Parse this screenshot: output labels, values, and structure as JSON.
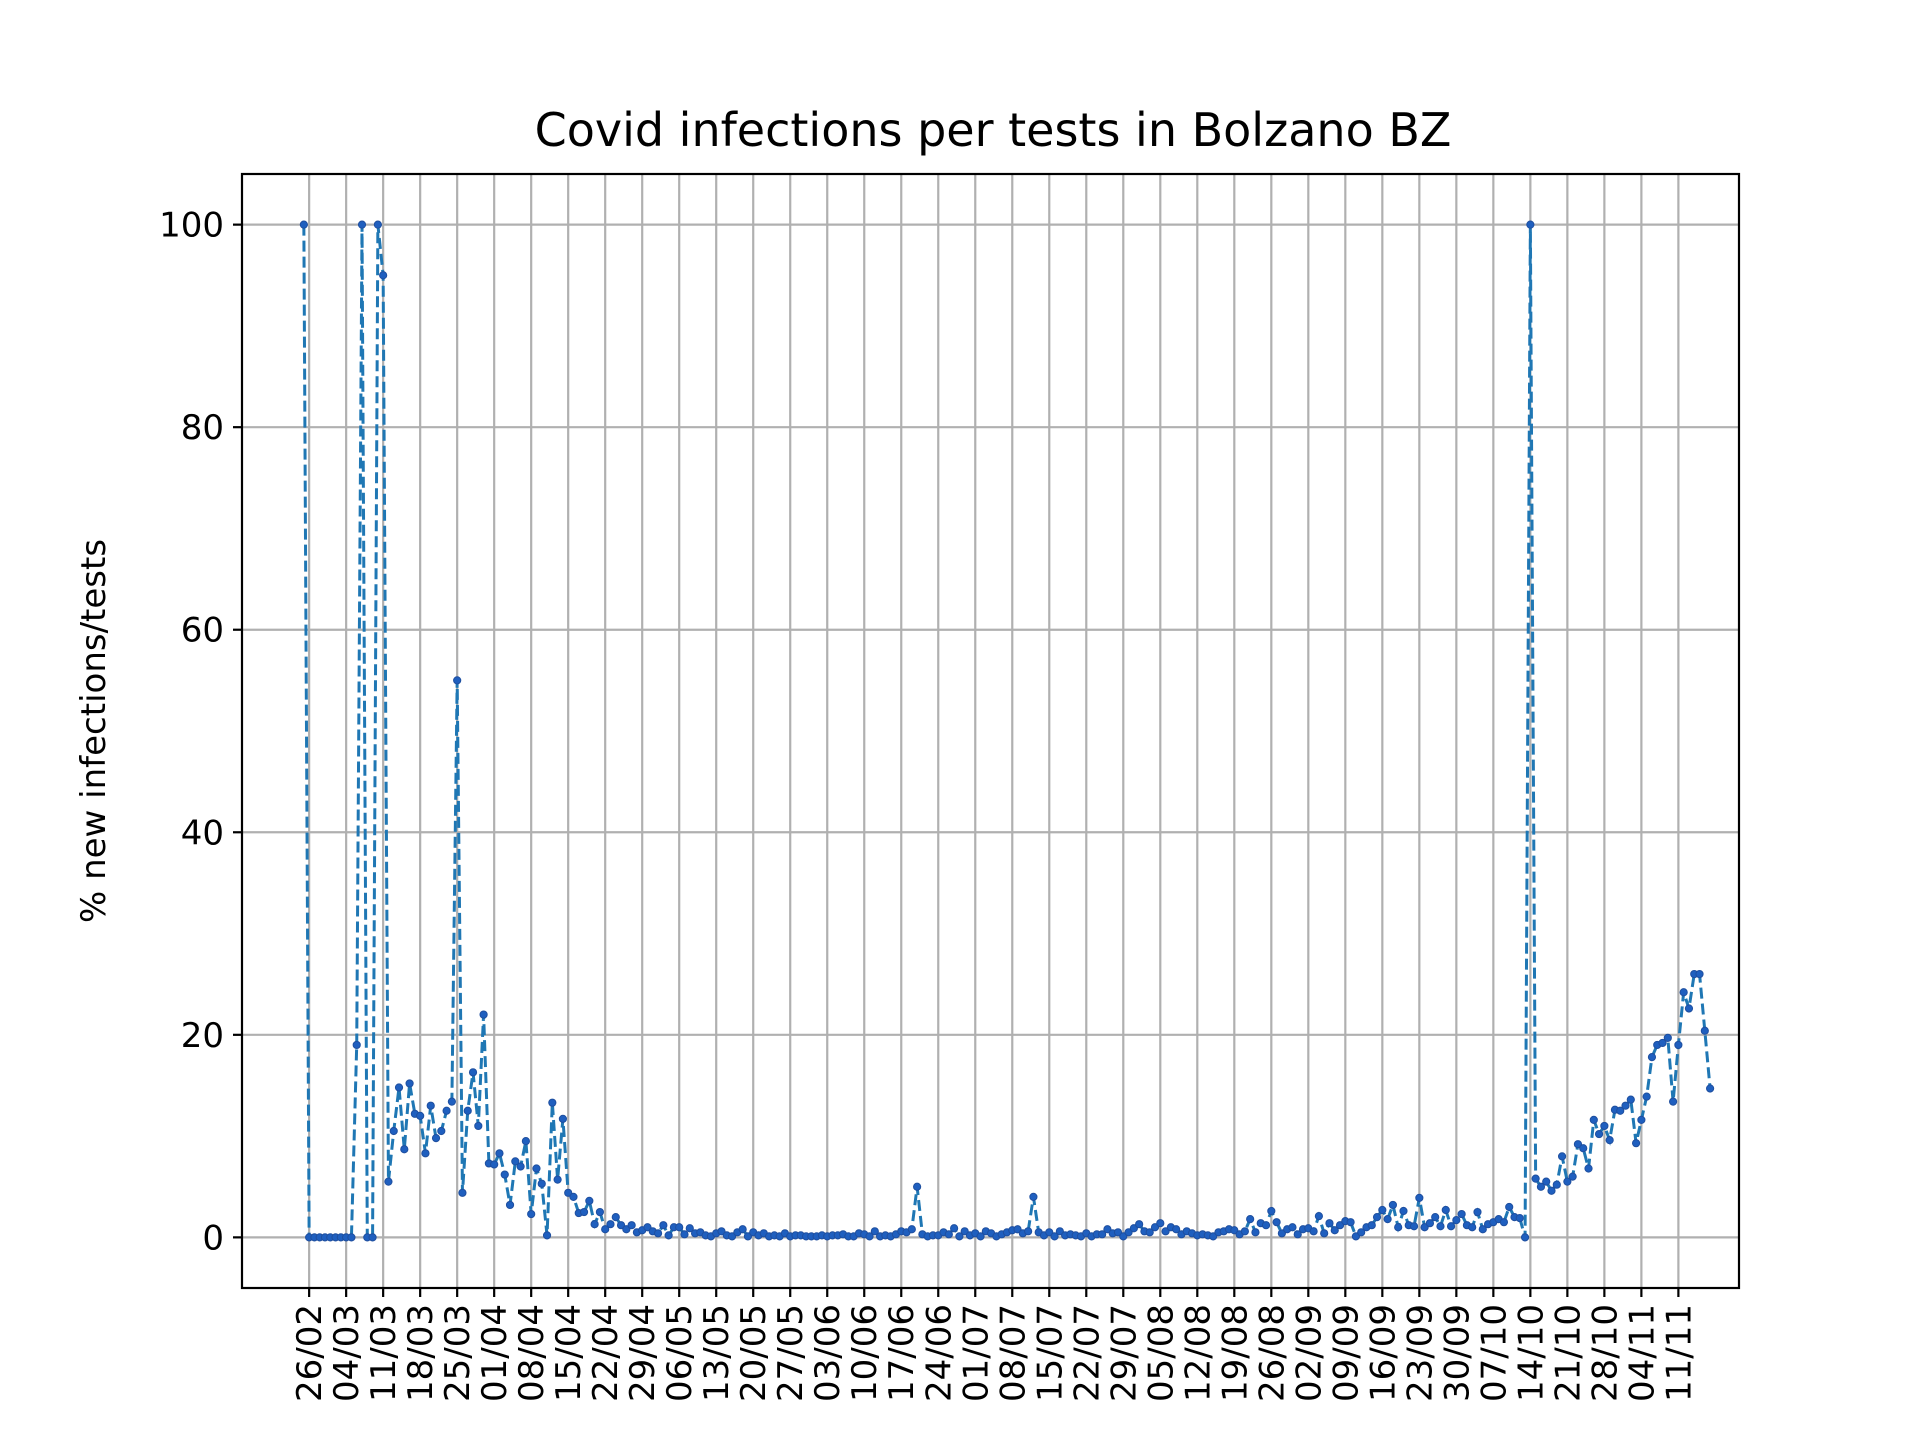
{
  "chart_data": {
    "type": "line",
    "title": "Covid infections per tests in Bolzano BZ",
    "xlabel": "",
    "ylabel": "% new infections/tests",
    "ylim": [
      -5,
      105
    ],
    "yticks": [
      0,
      20,
      40,
      60,
      80,
      100
    ],
    "grid": true,
    "legend": "none",
    "x_start": "2020-02-25",
    "x_end": "2020-11-11",
    "xticks": [
      {
        "date": "2020-02-26",
        "label": "26/02"
      },
      {
        "date": "2020-03-04",
        "label": "04/03"
      },
      {
        "date": "2020-03-11",
        "label": "11/03"
      },
      {
        "date": "2020-03-18",
        "label": "18/03"
      },
      {
        "date": "2020-03-25",
        "label": "25/03"
      },
      {
        "date": "2020-04-01",
        "label": "01/04"
      },
      {
        "date": "2020-04-08",
        "label": "08/04"
      },
      {
        "date": "2020-04-15",
        "label": "15/04"
      },
      {
        "date": "2020-04-22",
        "label": "22/04"
      },
      {
        "date": "2020-04-29",
        "label": "29/04"
      },
      {
        "date": "2020-05-06",
        "label": "06/05"
      },
      {
        "date": "2020-05-13",
        "label": "13/05"
      },
      {
        "date": "2020-05-20",
        "label": "20/05"
      },
      {
        "date": "2020-05-27",
        "label": "27/05"
      },
      {
        "date": "2020-06-03",
        "label": "03/06"
      },
      {
        "date": "2020-06-10",
        "label": "10/06"
      },
      {
        "date": "2020-06-17",
        "label": "17/06"
      },
      {
        "date": "2020-06-24",
        "label": "24/06"
      },
      {
        "date": "2020-07-01",
        "label": "01/07"
      },
      {
        "date": "2020-07-08",
        "label": "08/07"
      },
      {
        "date": "2020-07-15",
        "label": "15/07"
      },
      {
        "date": "2020-07-22",
        "label": "22/07"
      },
      {
        "date": "2020-07-29",
        "label": "29/07"
      },
      {
        "date": "2020-08-05",
        "label": "05/08"
      },
      {
        "date": "2020-08-12",
        "label": "12/08"
      },
      {
        "date": "2020-08-19",
        "label": "19/08"
      },
      {
        "date": "2020-08-26",
        "label": "26/08"
      },
      {
        "date": "2020-09-02",
        "label": "02/09"
      },
      {
        "date": "2020-09-09",
        "label": "09/09"
      },
      {
        "date": "2020-09-16",
        "label": "16/09"
      },
      {
        "date": "2020-09-23",
        "label": "23/09"
      },
      {
        "date": "2020-09-30",
        "label": "30/09"
      },
      {
        "date": "2020-10-07",
        "label": "07/10"
      },
      {
        "date": "2020-10-14",
        "label": "14/10"
      },
      {
        "date": "2020-10-21",
        "label": "21/10"
      },
      {
        "date": "2020-10-28",
        "label": "28/10"
      },
      {
        "date": "2020-11-04",
        "label": "04/11"
      },
      {
        "date": "2020-11-11",
        "label": "11/11"
      }
    ],
    "series": [
      {
        "name": "",
        "color": "#1f77b4",
        "values": [
          100,
          0,
          0,
          0,
          0,
          0,
          0,
          0,
          0,
          0,
          19,
          100,
          0,
          0,
          100,
          95,
          5.5,
          10.5,
          14.8,
          8.7,
          15.2,
          12.2,
          12,
          8.3,
          13,
          9.8,
          10.5,
          12.5,
          13.4,
          55,
          4.4,
          12.5,
          16.3,
          11,
          22,
          7.3,
          7.2,
          8.3,
          6.2,
          3.2,
          7.5,
          7,
          9.5,
          2.3,
          6.8,
          5.3,
          0.2,
          13.3,
          5.7,
          11.7,
          4.4,
          4,
          2.4,
          2.5,
          3.6,
          1.3,
          2.5,
          0.8,
          1.3,
          2,
          1.2,
          0.8,
          1.2,
          0.5,
          0.7,
          1,
          0.6,
          0.4,
          1.2,
          0.2,
          1,
          1,
          0.3,
          0.9,
          0.4,
          0.5,
          0.2,
          0.1,
          0.4,
          0.6,
          0.2,
          0.1,
          0.5,
          0.8,
          0.1,
          0.5,
          0.2,
          0.4,
          0.1,
          0.2,
          0.1,
          0.4,
          0.1,
          0.2,
          0.2,
          0.1,
          0.1,
          0.1,
          0.2,
          0.1,
          0.2,
          0.2,
          0.3,
          0.1,
          0.1,
          0.4,
          0.3,
          0.1,
          0.6,
          0.1,
          0.2,
          0.1,
          0.3,
          0.6,
          0.5,
          0.8,
          5,
          0.3,
          0.1,
          0.2,
          0.2,
          0.5,
          0.3,
          0.9,
          0.1,
          0.6,
          0.2,
          0.4,
          0.1,
          0.6,
          0.4,
          0.1,
          0.3,
          0.5,
          0.7,
          0.8,
          0.4,
          0.6,
          4,
          0.5,
          0.2,
          0.5,
          0.1,
          0.6,
          0.2,
          0.3,
          0.2,
          0.1,
          0.4,
          0.1,
          0.3,
          0.3,
          0.8,
          0.4,
          0.5,
          0.1,
          0.5,
          0.9,
          1.3,
          0.6,
          0.5,
          1,
          1.4,
          0.6,
          1,
          0.8,
          0.3,
          0.6,
          0.4,
          0.2,
          0.3,
          0.2,
          0.1,
          0.5,
          0.6,
          0.8,
          0.7,
          0.3,
          0.6,
          1.8,
          0.5,
          1.4,
          1.2,
          2.6,
          1.5,
          0.4,
          0.8,
          1,
          0.3,
          0.8,
          0.9,
          0.6,
          2.1,
          0.4,
          1.4,
          0.7,
          1.2,
          1.6,
          1.5,
          0.1,
          0.5,
          1,
          1.2,
          2,
          2.7,
          1.8,
          3.2,
          1,
          2.6,
          1.2,
          1.1,
          3.9,
          1,
          1.4,
          2,
          1.1,
          2.7,
          1.1,
          1.7,
          2.3,
          1.2,
          1,
          2.5,
          0.8,
          1.3,
          1.5,
          1.8,
          1.5,
          3,
          2,
          1.9,
          0,
          100,
          5.8,
          5,
          5.5,
          4.6,
          5.2,
          8,
          5.5,
          6,
          9.2,
          8.8,
          6.8,
          11.6,
          10.2,
          11,
          9.6,
          12.6,
          12.5,
          13,
          13.6,
          9.3,
          11.6,
          13.9,
          17.8,
          19,
          19.2,
          19.7,
          13.4,
          19,
          24.2,
          22.6,
          26,
          26,
          20.4,
          14.7
        ]
      }
    ]
  }
}
